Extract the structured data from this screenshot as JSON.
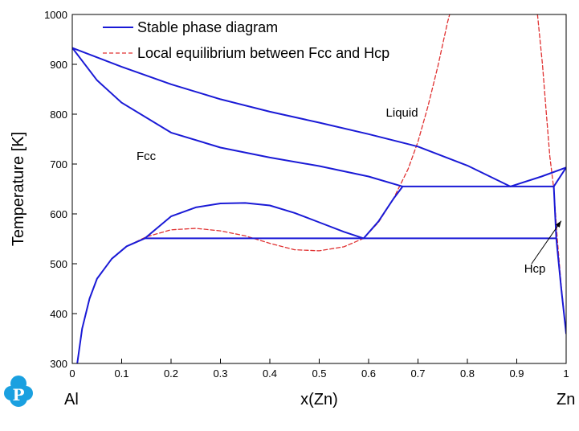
{
  "chart_data": {
    "type": "line",
    "title": "",
    "xlabel": "x(Zn)",
    "ylabel": "Temperature [K]",
    "xlim": [
      0,
      1
    ],
    "ylim": [
      300,
      1000
    ],
    "x_ticks": [
      0,
      0.1,
      0.2,
      0.3,
      0.4,
      0.5,
      0.6,
      0.7,
      0.8,
      0.9,
      1
    ],
    "x_tick_labels": [
      "0",
      "0.1",
      "0.2",
      "0.3",
      "0.4",
      "0.5",
      "0.6",
      "0.7",
      "0.8",
      "0.9",
      "1"
    ],
    "y_ticks": [
      300,
      400,
      500,
      600,
      700,
      800,
      900,
      1000
    ],
    "y_tick_labels": [
      "300",
      "400",
      "500",
      "600",
      "700",
      "800",
      "900",
      "1000"
    ],
    "grid": false,
    "legend_position": "top-left",
    "end_labels": {
      "left": "Al",
      "right": "Zn"
    },
    "region_labels": [
      {
        "text": "Liquid",
        "x": 0.635,
        "y": 795
      },
      {
        "text": "Fcc",
        "x": 0.13,
        "y": 708
      },
      {
        "text": "Hcp",
        "x": 0.915,
        "y": 482
      }
    ],
    "annotations": [
      {
        "type": "arrow",
        "from": [
          0.93,
          500
        ],
        "to": [
          0.99,
          586
        ]
      }
    ],
    "series": [
      {
        "name": "Stable phase diagram",
        "color": "#1a1ad6",
        "style": "solid",
        "segments": [
          {
            "label": "liquidus-left",
            "points": [
              [
                0,
                933
              ],
              [
                0.1,
                895
              ],
              [
                0.2,
                860
              ],
              [
                0.3,
                830
              ],
              [
                0.4,
                805
              ],
              [
                0.5,
                783
              ],
              [
                0.6,
                760
              ],
              [
                0.7,
                735
              ],
              [
                0.8,
                697
              ],
              [
                0.887,
                655
              ]
            ]
          },
          {
            "label": "liquidus-right",
            "points": [
              [
                0.887,
                655
              ],
              [
                0.95,
                675
              ],
              [
                1,
                693
              ]
            ]
          },
          {
            "label": "fcc-solidus",
            "points": [
              [
                0,
                933
              ],
              [
                0.05,
                868
              ],
              [
                0.1,
                823
              ],
              [
                0.2,
                763
              ],
              [
                0.3,
                733
              ],
              [
                0.4,
                713
              ],
              [
                0.5,
                696
              ],
              [
                0.6,
                675
              ],
              [
                0.669,
                655
              ]
            ]
          },
          {
            "label": "eutectic-line",
            "points": [
              [
                0.669,
                655
              ],
              [
                0.975,
                655
              ]
            ]
          },
          {
            "label": "hcp-solidus",
            "points": [
              [
                0.975,
                655
              ],
              [
                1,
                693
              ]
            ]
          },
          {
            "label": "miscibility-gap",
            "points": [
              [
                0.147,
                551
              ],
              [
                0.2,
                595
              ],
              [
                0.25,
                613
              ],
              [
                0.3,
                621
              ],
              [
                0.35,
                622
              ],
              [
                0.4,
                617
              ],
              [
                0.45,
                602
              ],
              [
                0.5,
                583
              ],
              [
                0.55,
                564
              ],
              [
                0.59,
                551
              ]
            ]
          },
          {
            "label": "monotectoid-line",
            "points": [
              [
                0.147,
                551
              ],
              [
                0.98,
                551
              ]
            ]
          },
          {
            "label": "fcc-solvus-left",
            "points": [
              [
                0.01,
                300
              ],
              [
                0.02,
                370
              ],
              [
                0.035,
                430
              ],
              [
                0.05,
                470
              ],
              [
                0.08,
                510
              ],
              [
                0.11,
                535
              ],
              [
                0.147,
                551
              ]
            ]
          },
          {
            "label": "fcc-solvus-right",
            "points": [
              [
                0.59,
                551
              ],
              [
                0.62,
                585
              ],
              [
                0.65,
                630
              ],
              [
                0.669,
                655
              ]
            ]
          },
          {
            "label": "hcp-solvus",
            "points": [
              [
                0.975,
                655
              ],
              [
                0.98,
                551
              ],
              [
                0.99,
                450
              ],
              [
                1,
                360
              ]
            ]
          }
        ]
      },
      {
        "name": "Local equilibrium between Fcc and Hcp",
        "color": "#e03030",
        "style": "dashed",
        "segments": [
          {
            "label": "fcc-left",
            "points": [
              [
                0.01,
                300
              ],
              [
                0.02,
                370
              ],
              [
                0.035,
                430
              ],
              [
                0.05,
                470
              ],
              [
                0.08,
                510
              ],
              [
                0.11,
                535
              ],
              [
                0.15,
                554
              ],
              [
                0.2,
                568
              ],
              [
                0.25,
                571
              ],
              [
                0.3,
                566
              ],
              [
                0.35,
                556
              ],
              [
                0.4,
                541
              ],
              [
                0.45,
                528
              ],
              [
                0.5,
                526
              ],
              [
                0.55,
                534
              ],
              [
                0.59,
                551
              ],
              [
                0.62,
                583
              ],
              [
                0.65,
                630
              ],
              [
                0.68,
                690
              ],
              [
                0.7,
                745
              ],
              [
                0.72,
                815
              ],
              [
                0.74,
                895
              ],
              [
                0.76,
                985
              ],
              [
                0.764,
                1000
              ]
            ]
          },
          {
            "label": "hcp-right",
            "points": [
              [
                0.942,
                1000
              ],
              [
                0.952,
                900
              ],
              [
                0.96,
                800
              ],
              [
                0.967,
                715
              ],
              [
                0.975,
                650
              ],
              [
                0.982,
                551
              ],
              [
                0.99,
                455
              ],
              [
                1,
                360
              ]
            ]
          }
        ]
      }
    ]
  }
}
